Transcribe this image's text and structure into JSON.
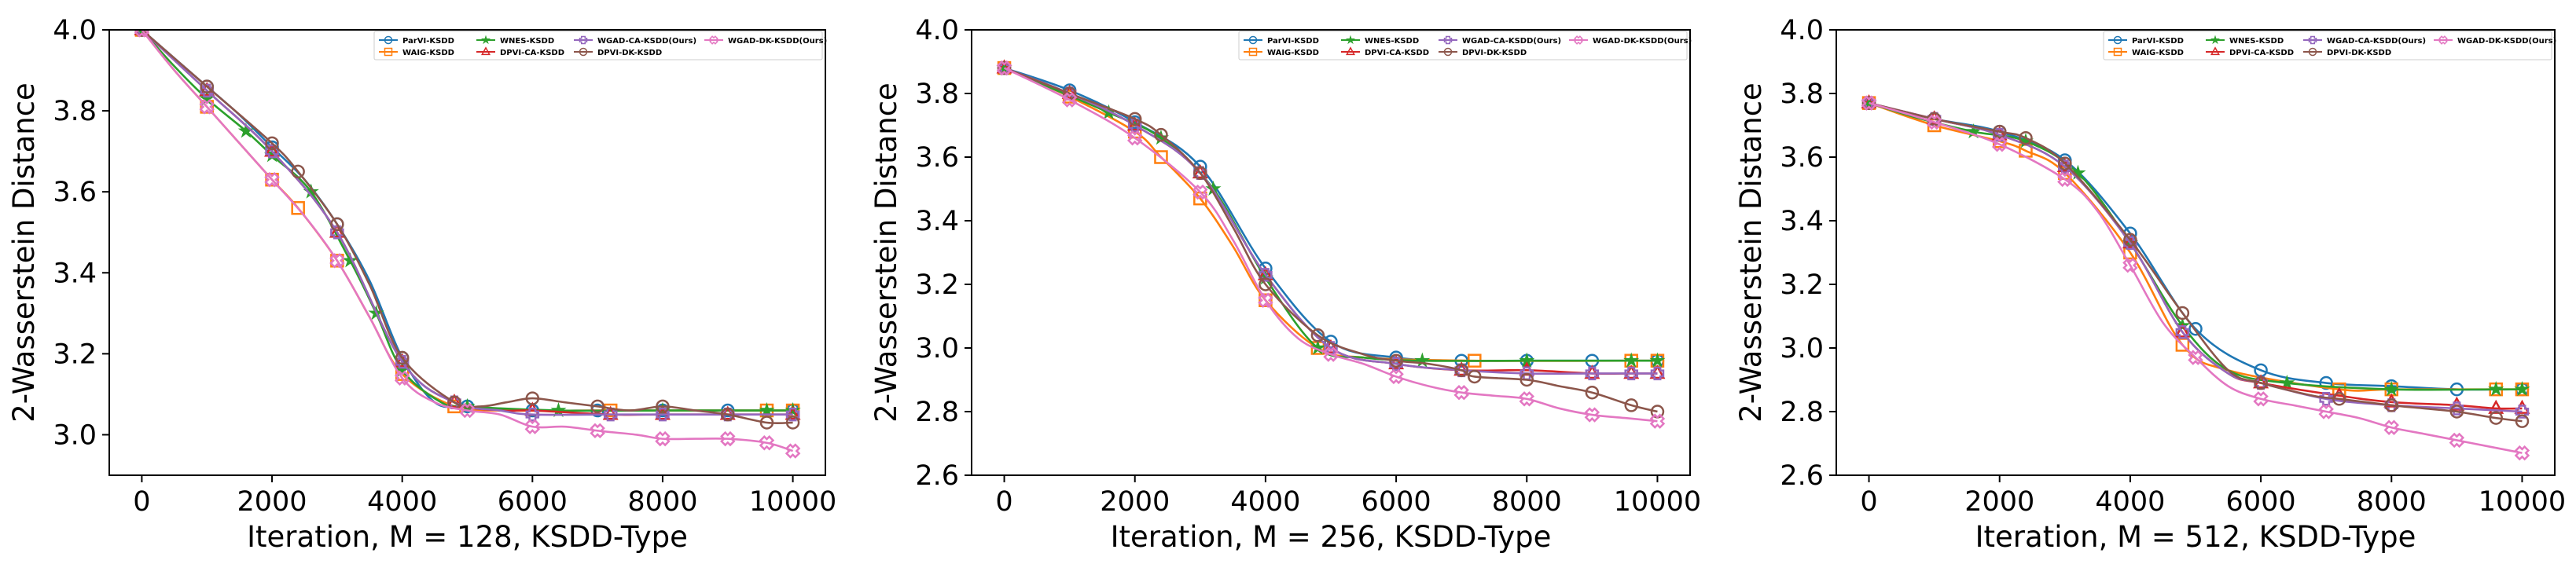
{
  "colors": {
    "ParVI-KSDD": "#1f77b4",
    "WAIG-KSDD": "#ff7f0e",
    "WNES-KSDD": "#2ca02c",
    "DPVI-CA-KSDD": "#d62728",
    "WGAD-CA-KSDD(Ours)": "#9467bd",
    "DPVI-DK-KSDD": "#8c564b",
    "WGAD-DK-KSDD(Ours)": "#e377c2"
  },
  "legend_order": [
    "ParVI-KSDD",
    "WAIG-KSDD",
    "WNES-KSDD",
    "DPVI-CA-KSDD",
    "WGAD-CA-KSDD(Ours)",
    "DPVI-DK-KSDD",
    "WGAD-DK-KSDD(Ours)"
  ],
  "legend_labels": [
    "ParVI-KSDD",
    "WAIG-KSDD",
    "WNES-KSDD",
    "DPVI-CA-KSDD",
    "WGAD-CA-KSDD(Ours)",
    "DPVI-DK-KSDD",
    "WGAD-DK-KSDD(Ours)"
  ],
  "chart_data": [
    {
      "type": "line",
      "xlabel": "Iteration, M = 128, KSDD-Type",
      "ylabel": "2-Wasserstein Distance",
      "xlim": [
        -500,
        10500
      ],
      "ylim": [
        2.9,
        4.0
      ],
      "xticks": [
        0,
        2000,
        4000,
        6000,
        8000,
        10000
      ],
      "yticks": [
        3.0,
        3.2,
        3.4,
        3.6,
        3.8,
        4.0
      ],
      "ytick_labels": [
        "3.0",
        "3.2",
        "3.4",
        "3.6",
        "3.8",
        "4.0"
      ],
      "legend_position": "top-right",
      "series": [
        {
          "name": "ParVI-KSDD",
          "marker": "circle",
          "x": [
            0,
            500,
            1000,
            1500,
            2000,
            2500,
            3000,
            3500,
            4000,
            4500,
            5000,
            6000,
            7000,
            8000,
            9000,
            10000
          ],
          "y": [
            4.0,
            3.93,
            3.86,
            3.79,
            3.71,
            3.63,
            3.52,
            3.38,
            3.19,
            3.08,
            3.07,
            3.06,
            3.06,
            3.06,
            3.06,
            3.06
          ]
        },
        {
          "name": "WAIG-KSDD",
          "marker": "square",
          "x": [
            0,
            500,
            1000,
            1500,
            2000,
            2400,
            3000,
            3500,
            4000,
            4800,
            5500,
            7200,
            9600,
            10000
          ],
          "y": [
            4.0,
            3.9,
            3.81,
            3.72,
            3.63,
            3.56,
            3.43,
            3.29,
            3.15,
            3.07,
            3.06,
            3.06,
            3.06,
            3.06
          ]
        },
        {
          "name": "WNES-KSDD",
          "marker": "star",
          "x": [
            0,
            500,
            1000,
            1600,
            2000,
            2600,
            3200,
            3600,
            4000,
            4600,
            5000,
            6400,
            8000,
            9600,
            10000
          ],
          "y": [
            4.0,
            3.91,
            3.83,
            3.75,
            3.69,
            3.6,
            3.43,
            3.3,
            3.16,
            3.08,
            3.07,
            3.06,
            3.06,
            3.06,
            3.06
          ]
        },
        {
          "name": "DPVI-CA-KSDD",
          "marker": "triangle",
          "x": [
            0,
            1000,
            2000,
            3000,
            4000,
            4800,
            5500,
            6000,
            7200,
            8000,
            9000,
            10000
          ],
          "y": [
            4.0,
            3.85,
            3.7,
            3.5,
            3.18,
            3.08,
            3.06,
            3.06,
            3.05,
            3.05,
            3.05,
            3.05
          ]
        },
        {
          "name": "WGAD-CA-KSDD(Ours)",
          "marker": "plus",
          "x": [
            0,
            1000,
            2000,
            3000,
            4000,
            4800,
            5500,
            6000,
            7200,
            8000,
            9000,
            10000
          ],
          "y": [
            4.0,
            3.85,
            3.7,
            3.5,
            3.18,
            3.08,
            3.06,
            3.05,
            3.05,
            3.05,
            3.05,
            3.05
          ]
        },
        {
          "name": "DPVI-DK-KSDD",
          "marker": "circle",
          "x": [
            0,
            1000,
            2000,
            2400,
            3000,
            3500,
            4000,
            4800,
            5200,
            5600,
            6000,
            6500,
            7000,
            7500,
            8000,
            8500,
            9000,
            9600,
            10000
          ],
          "y": [
            4.0,
            3.86,
            3.72,
            3.65,
            3.52,
            3.37,
            3.19,
            3.08,
            3.07,
            3.08,
            3.09,
            3.08,
            3.07,
            3.06,
            3.07,
            3.06,
            3.05,
            3.03,
            3.03
          ]
        },
        {
          "name": "WGAD-DK-KSDD(Ours)",
          "marker": "x",
          "x": [
            0,
            500,
            1000,
            1500,
            2000,
            2500,
            3000,
            3500,
            4000,
            4500,
            5000,
            5500,
            6000,
            6500,
            7000,
            7600,
            8000,
            8500,
            9000,
            9600,
            10000
          ],
          "y": [
            4.0,
            3.9,
            3.81,
            3.72,
            3.63,
            3.54,
            3.43,
            3.29,
            3.14,
            3.08,
            3.06,
            3.05,
            3.02,
            3.02,
            3.01,
            3.0,
            2.99,
            2.99,
            2.99,
            2.98,
            2.96
          ]
        }
      ]
    },
    {
      "type": "line",
      "xlabel": "Iteration, M = 256, KSDD-Type",
      "ylabel": "2-Wasserstein Distance",
      "xlim": [
        -500,
        10500
      ],
      "ylim": [
        2.6,
        4.0
      ],
      "xticks": [
        0,
        2000,
        4000,
        6000,
        8000,
        10000
      ],
      "yticks": [
        2.6,
        2.8,
        3.0,
        3.2,
        3.4,
        3.6,
        3.8,
        4.0
      ],
      "ytick_labels": [
        "2.6",
        "2.8",
        "3.0",
        "3.2",
        "3.4",
        "3.6",
        "3.8",
        "4.0"
      ],
      "legend_position": "top-right",
      "series": [
        {
          "name": "ParVI-KSDD",
          "marker": "circle",
          "x": [
            0,
            1000,
            2000,
            3000,
            4000,
            5000,
            6000,
            7000,
            8000,
            9000,
            10000
          ],
          "y": [
            3.88,
            3.81,
            3.71,
            3.57,
            3.25,
            3.02,
            2.97,
            2.96,
            2.96,
            2.96,
            2.96
          ]
        },
        {
          "name": "WAIG-KSDD",
          "marker": "square",
          "x": [
            0,
            1000,
            2000,
            2400,
            3000,
            3500,
            4000,
            4800,
            5500,
            7200,
            9600,
            10000
          ],
          "y": [
            3.88,
            3.79,
            3.68,
            3.6,
            3.47,
            3.32,
            3.15,
            3.0,
            2.97,
            2.96,
            2.96,
            2.96
          ]
        },
        {
          "name": "WNES-KSDD",
          "marker": "star",
          "x": [
            0,
            800,
            1600,
            2400,
            3200,
            4000,
            4800,
            5500,
            6400,
            8000,
            9600,
            10000
          ],
          "y": [
            3.88,
            3.81,
            3.74,
            3.66,
            3.5,
            3.22,
            3.0,
            2.97,
            2.96,
            2.96,
            2.96,
            2.96
          ]
        },
        {
          "name": "DPVI-CA-KSDD",
          "marker": "triangle",
          "x": [
            0,
            1000,
            2000,
            3000,
            4000,
            5000,
            6000,
            7000,
            8000,
            9000,
            9600,
            10000
          ],
          "y": [
            3.88,
            3.8,
            3.7,
            3.55,
            3.23,
            3.0,
            2.95,
            2.93,
            2.93,
            2.92,
            2.92,
            2.92
          ]
        },
        {
          "name": "WGAD-CA-KSDD(Ours)",
          "marker": "plus",
          "x": [
            0,
            1000,
            2000,
            3000,
            4000,
            5000,
            6000,
            7000,
            8000,
            9000,
            9600,
            10000
          ],
          "y": [
            3.88,
            3.8,
            3.7,
            3.55,
            3.23,
            3.0,
            2.95,
            2.93,
            2.92,
            2.92,
            2.92,
            2.92
          ]
        },
        {
          "name": "DPVI-DK-KSDD",
          "marker": "circle",
          "x": [
            0,
            1000,
            2000,
            2400,
            3000,
            3500,
            4000,
            4800,
            5500,
            6000,
            6500,
            7000,
            7200,
            8000,
            8500,
            9000,
            9600,
            10000
          ],
          "y": [
            3.88,
            3.8,
            3.72,
            3.67,
            3.55,
            3.38,
            3.2,
            3.04,
            2.98,
            2.96,
            2.95,
            2.93,
            2.91,
            2.9,
            2.88,
            2.86,
            2.82,
            2.8
          ]
        },
        {
          "name": "WGAD-DK-KSDD(Ours)",
          "marker": "x",
          "x": [
            0,
            1000,
            2000,
            3000,
            3500,
            4000,
            4500,
            5000,
            5500,
            6000,
            6500,
            7000,
            7500,
            8000,
            8500,
            9000,
            9500,
            10000
          ],
          "y": [
            3.88,
            3.78,
            3.66,
            3.49,
            3.34,
            3.15,
            3.03,
            2.98,
            2.95,
            2.91,
            2.88,
            2.86,
            2.85,
            2.84,
            2.81,
            2.79,
            2.78,
            2.77
          ]
        }
      ]
    },
    {
      "type": "line",
      "xlabel": "Iteration, M = 512, KSDD-Type",
      "ylabel": "2-Wasserstein Distance",
      "xlim": [
        -500,
        10500
      ],
      "ylim": [
        2.6,
        4.0
      ],
      "xticks": [
        0,
        2000,
        4000,
        6000,
        8000,
        10000
      ],
      "yticks": [
        2.6,
        2.8,
        3.0,
        3.2,
        3.4,
        3.6,
        3.8,
        4.0
      ],
      "ytick_labels": [
        "2.6",
        "2.8",
        "3.0",
        "3.2",
        "3.4",
        "3.6",
        "3.8",
        "4.0"
      ],
      "legend_position": "top-right",
      "series": [
        {
          "name": "ParVI-KSDD",
          "marker": "circle",
          "x": [
            0,
            1000,
            2000,
            3000,
            4000,
            5000,
            6000,
            7000,
            8000,
            9000,
            10000
          ],
          "y": [
            3.77,
            3.72,
            3.68,
            3.59,
            3.36,
            3.06,
            2.93,
            2.89,
            2.88,
            2.87,
            2.87
          ]
        },
        {
          "name": "WAIG-KSDD",
          "marker": "square",
          "x": [
            0,
            1000,
            2000,
            2400,
            3000,
            4000,
            4800,
            5500,
            7200,
            8000,
            9600,
            10000
          ],
          "y": [
            3.77,
            3.7,
            3.65,
            3.62,
            3.55,
            3.3,
            3.01,
            2.93,
            2.87,
            2.87,
            2.87,
            2.87
          ]
        },
        {
          "name": "WNES-KSDD",
          "marker": "star",
          "x": [
            0,
            800,
            1600,
            2400,
            3200,
            4000,
            4800,
            5500,
            6400,
            8000,
            9600,
            10000
          ],
          "y": [
            3.77,
            3.72,
            3.68,
            3.65,
            3.55,
            3.33,
            3.07,
            2.93,
            2.89,
            2.87,
            2.87,
            2.87
          ]
        },
        {
          "name": "DPVI-CA-KSDD",
          "marker": "triangle",
          "x": [
            0,
            1000,
            2000,
            3000,
            4000,
            4800,
            5500,
            6000,
            7200,
            8000,
            9000,
            9600,
            10000
          ],
          "y": [
            3.77,
            3.72,
            3.67,
            3.57,
            3.33,
            3.05,
            2.92,
            2.89,
            2.85,
            2.83,
            2.82,
            2.81,
            2.81
          ]
        },
        {
          "name": "WGAD-CA-KSDD(Ours)",
          "marker": "plus",
          "x": [
            0,
            1000,
            2000,
            3000,
            4000,
            4800,
            5500,
            6000,
            7000,
            8000,
            9000,
            10000
          ],
          "y": [
            3.77,
            3.72,
            3.67,
            3.57,
            3.33,
            3.05,
            2.92,
            2.89,
            2.84,
            2.82,
            2.81,
            2.8
          ]
        },
        {
          "name": "DPVI-DK-KSDD",
          "marker": "circle",
          "x": [
            0,
            1000,
            2000,
            2400,
            3000,
            4000,
            4800,
            5500,
            6000,
            6800,
            7200,
            8000,
            8500,
            9000,
            9600,
            10000
          ],
          "y": [
            3.77,
            3.72,
            3.68,
            3.66,
            3.58,
            3.34,
            3.11,
            2.93,
            2.89,
            2.85,
            2.84,
            2.82,
            2.81,
            2.8,
            2.78,
            2.77
          ]
        },
        {
          "name": "WGAD-DK-KSDD(Ours)",
          "marker": "x",
          "x": [
            0,
            1000,
            2000,
            3000,
            3500,
            4000,
            4500,
            5000,
            5500,
            6000,
            6500,
            7000,
            7500,
            8000,
            8500,
            9000,
            9500,
            10000
          ],
          "y": [
            3.77,
            3.71,
            3.64,
            3.53,
            3.43,
            3.26,
            3.08,
            2.97,
            2.88,
            2.84,
            2.82,
            2.8,
            2.78,
            2.75,
            2.73,
            2.71,
            2.69,
            2.67
          ]
        }
      ]
    }
  ]
}
